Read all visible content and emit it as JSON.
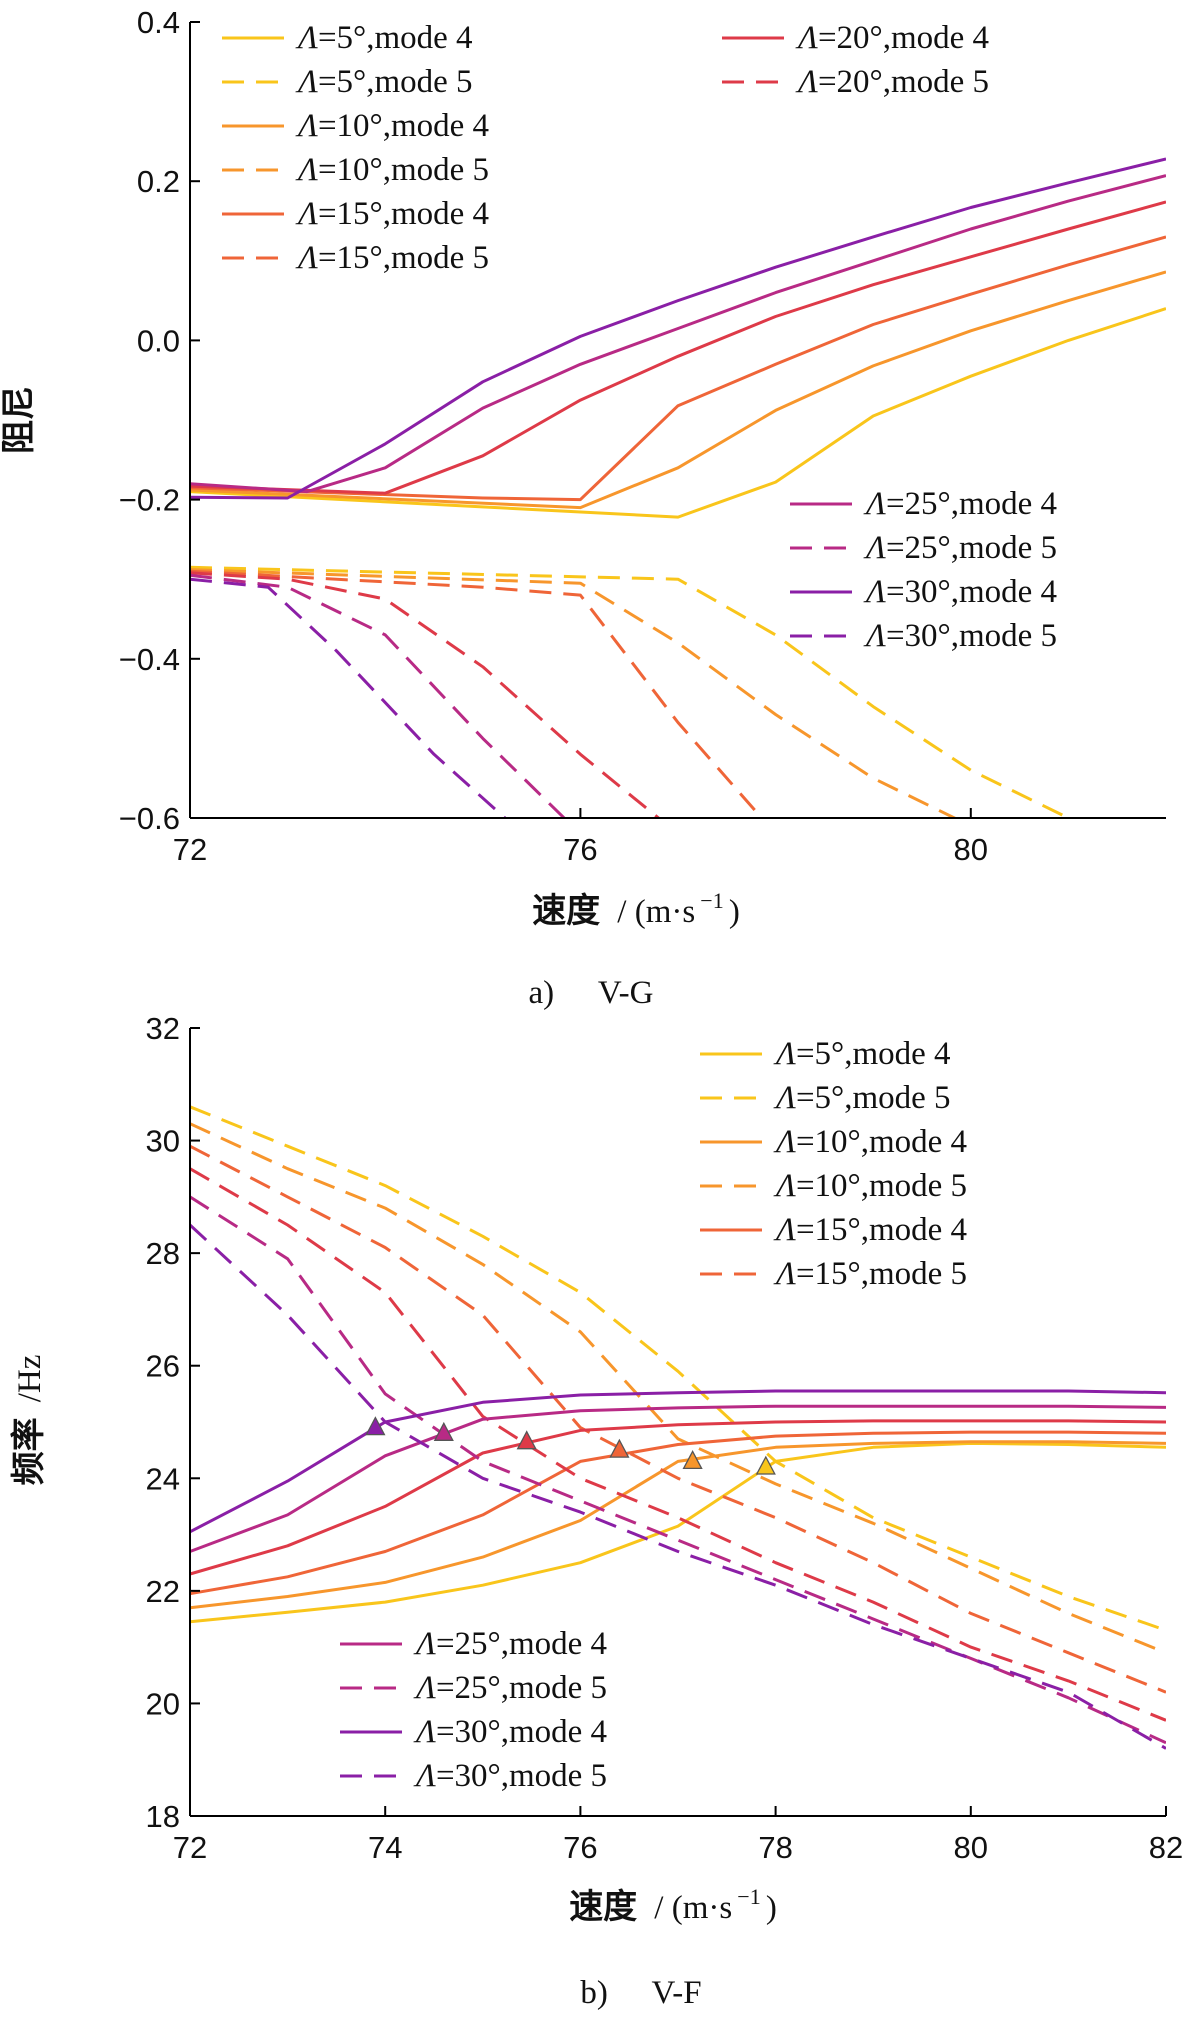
{
  "colors": {
    "sweep_5": "#f9c51b",
    "sweep_10": "#f7962c",
    "sweep_15": "#ef6538",
    "sweep_20": "#de3a48",
    "sweep_25": "#b82a85",
    "sweep_30": "#8a1fa6",
    "axis": "#000000"
  },
  "chart_data": [
    {
      "type": "line",
      "title": "",
      "caption": {
        "letter": "a)",
        "text": "V-G"
      },
      "xlabel": "速度",
      "xlabel_unit": "/ (m·s",
      "xlabel_sup": "−1",
      "xlabel_close": ")",
      "ylabel": "阻尼",
      "xlim": [
        72,
        82
      ],
      "ylim": [
        -0.6,
        0.4
      ],
      "xticks": [
        72,
        76,
        80
      ],
      "xtick_labels": [
        "72",
        "76",
        "80"
      ],
      "yticks": [
        0.4,
        0.2,
        0.0,
        -0.2,
        -0.4,
        -0.6
      ],
      "ytick_labels": [
        "0.4",
        "0.2",
        "0.0",
        "−0.2",
        "−0.4",
        "−0.6"
      ],
      "legends": [
        {
          "position": "top-left",
          "entries": [
            0,
            1,
            2,
            3,
            4,
            5
          ]
        },
        {
          "position": "top-center",
          "entries": [
            6,
            7
          ]
        },
        {
          "position": "middle-right",
          "entries": [
            8,
            9,
            10,
            11
          ]
        }
      ],
      "series": [
        {
          "name": "Λ=5°,mode 4",
          "lambda": "Λ",
          "rest": "=5°,mode 4",
          "sweep": 5,
          "dash": false,
          "color_key": "sweep_5",
          "x": [
            72,
            77,
            78,
            79,
            80,
            81,
            82
          ],
          "y": [
            -0.19,
            -0.222,
            -0.178,
            -0.095,
            -0.045,
            0.0,
            0.04
          ]
        },
        {
          "name": "Λ=5°,mode 5",
          "lambda": "Λ",
          "rest": "=5°,mode 5",
          "sweep": 5,
          "dash": true,
          "color_key": "sweep_5",
          "x": [
            72,
            77,
            78,
            79,
            80,
            81,
            82
          ],
          "y": [
            -0.285,
            -0.3,
            -0.37,
            -0.46,
            -0.54,
            -0.6,
            -0.63
          ]
        },
        {
          "name": "Λ=10°,mode 4",
          "lambda": "Λ",
          "rest": "=10°,mode 4",
          "sweep": 10,
          "dash": false,
          "color_key": "sweep_10",
          "x": [
            72,
            76,
            77,
            78,
            79,
            80,
            81,
            82
          ],
          "y": [
            -0.188,
            -0.21,
            -0.16,
            -0.088,
            -0.032,
            0.012,
            0.05,
            0.086
          ]
        },
        {
          "name": "Λ=10°,mode 5",
          "lambda": "Λ",
          "rest": "=10°,mode 5",
          "sweep": 10,
          "dash": true,
          "color_key": "sweep_10",
          "x": [
            72,
            76,
            77,
            78,
            79,
            80
          ],
          "y": [
            -0.288,
            -0.305,
            -0.38,
            -0.47,
            -0.55,
            -0.61
          ]
        },
        {
          "name": "Λ=15°,mode 4",
          "lambda": "Λ",
          "rest": "=15°,mode 4",
          "sweep": 15,
          "dash": false,
          "color_key": "sweep_15",
          "x": [
            72,
            75,
            76,
            77,
            78,
            79,
            80,
            81,
            82
          ],
          "y": [
            -0.185,
            -0.198,
            -0.2,
            -0.082,
            -0.03,
            0.02,
            0.058,
            0.095,
            0.13
          ]
        },
        {
          "name": "Λ=15°,mode 5",
          "lambda": "Λ",
          "rest": "=15°,mode 5",
          "sweep": 15,
          "dash": true,
          "color_key": "sweep_15",
          "x": [
            72,
            75,
            76,
            77,
            78
          ],
          "y": [
            -0.29,
            -0.31,
            -0.32,
            -0.48,
            -0.62
          ]
        },
        {
          "name": "Λ=20°,mode 4",
          "lambda": "Λ",
          "rest": "=20°,mode 4",
          "sweep": 20,
          "dash": false,
          "color_key": "sweep_20",
          "x": [
            72,
            74,
            75,
            76,
            77,
            78,
            79,
            80,
            81,
            82
          ],
          "y": [
            -0.183,
            -0.192,
            -0.145,
            -0.075,
            -0.02,
            0.03,
            0.07,
            0.105,
            0.14,
            0.174
          ]
        },
        {
          "name": "Λ=20°,mode 5",
          "lambda": "Λ",
          "rest": "=20°,mode 5",
          "sweep": 20,
          "dash": true,
          "color_key": "sweep_20",
          "x": [
            72,
            73,
            74,
            75,
            76,
            77
          ],
          "y": [
            -0.292,
            -0.3,
            -0.325,
            -0.41,
            -0.52,
            -0.62
          ]
        },
        {
          "name": "Λ=25°,mode 4",
          "lambda": "Λ",
          "rest": "=25°,mode 4",
          "sweep": 25,
          "dash": false,
          "color_key": "sweep_25",
          "x": [
            72,
            73.2,
            74,
            75,
            76,
            77,
            78,
            79,
            80,
            81,
            82
          ],
          "y": [
            -0.18,
            -0.19,
            -0.16,
            -0.085,
            -0.03,
            0.015,
            0.06,
            0.1,
            0.14,
            0.175,
            0.207
          ]
        },
        {
          "name": "Λ=25°,mode 5",
          "lambda": "Λ",
          "rest": "=25°,mode 5",
          "sweep": 25,
          "dash": true,
          "color_key": "sweep_25",
          "x": [
            72,
            73,
            74,
            75,
            76
          ],
          "y": [
            -0.295,
            -0.31,
            -0.37,
            -0.5,
            -0.62
          ]
        },
        {
          "name": "Λ=30°,mode 4",
          "lambda": "Λ",
          "rest": "=30°,mode 4",
          "sweep": 30,
          "dash": false,
          "color_key": "sweep_30",
          "x": [
            72,
            73,
            74,
            75,
            76,
            77,
            78,
            79,
            80,
            81,
            82
          ],
          "y": [
            -0.197,
            -0.198,
            -0.13,
            -0.052,
            0.005,
            0.05,
            0.092,
            0.13,
            0.167,
            0.198,
            0.228
          ]
        },
        {
          "name": "Λ=30°,mode 5",
          "lambda": "Λ",
          "rest": "=30°,mode 5",
          "sweep": 30,
          "dash": true,
          "color_key": "sweep_30",
          "x": [
            72,
            72.8,
            73.5,
            74.5,
            75.5
          ],
          "y": [
            -0.3,
            -0.31,
            -0.39,
            -0.52,
            -0.63
          ]
        }
      ]
    },
    {
      "type": "line",
      "title": "",
      "caption": {
        "letter": "b)",
        "text": "V-F"
      },
      "xlabel": "速度",
      "xlabel_unit": "/ (m·s",
      "xlabel_sup": "−1",
      "xlabel_close": ")",
      "ylabel": "频率",
      "ylabel_unit": "/Hz",
      "xlim": [
        72,
        82
      ],
      "ylim": [
        18,
        32
      ],
      "xticks": [
        72,
        74,
        76,
        78,
        80,
        82
      ],
      "xtick_labels": [
        "72",
        "74",
        "76",
        "78",
        "80",
        "82"
      ],
      "yticks": [
        32,
        30,
        28,
        26,
        24,
        22,
        20,
        18
      ],
      "ytick_labels": [
        "32",
        "30",
        "28",
        "26",
        "24",
        "22",
        "20",
        "18"
      ],
      "legends": [
        {
          "position": "top-right",
          "entries": [
            0,
            1,
            2,
            3,
            4,
            5
          ]
        },
        {
          "position": "bottom-left",
          "entries": [
            8,
            9,
            10,
            11
          ]
        }
      ],
      "markers": [
        {
          "sweep": 5,
          "x": 77.9,
          "y": 24.2,
          "color_key": "sweep_5"
        },
        {
          "sweep": 10,
          "x": 77.15,
          "y": 24.3,
          "color_key": "sweep_10"
        },
        {
          "sweep": 15,
          "x": 76.4,
          "y": 24.5,
          "color_key": "sweep_15"
        },
        {
          "sweep": 20,
          "x": 75.45,
          "y": 24.65,
          "color_key": "sweep_20"
        },
        {
          "sweep": 25,
          "x": 74.6,
          "y": 24.8,
          "color_key": "sweep_25"
        },
        {
          "sweep": 30,
          "x": 73.9,
          "y": 24.9,
          "color_key": "sweep_30"
        }
      ],
      "series": [
        {
          "name": "Λ=5°,mode 4",
          "lambda": "Λ",
          "rest": "=5°,mode 4",
          "sweep": 5,
          "dash": false,
          "color_key": "sweep_5",
          "x": [
            72,
            73,
            74,
            75,
            76,
            77,
            78,
            79,
            80,
            81,
            82
          ],
          "y": [
            21.45,
            21.62,
            21.8,
            22.1,
            22.5,
            23.15,
            24.3,
            24.55,
            24.62,
            24.6,
            24.55
          ]
        },
        {
          "name": "Λ=5°,mode 5",
          "lambda": "Λ",
          "rest": "=5°,mode 5",
          "sweep": 5,
          "dash": true,
          "color_key": "sweep_5",
          "x": [
            72,
            73,
            74,
            75,
            76,
            77,
            78,
            79,
            80,
            81,
            82
          ],
          "y": [
            30.6,
            29.9,
            29.2,
            28.3,
            27.3,
            25.9,
            24.3,
            23.3,
            22.6,
            21.9,
            21.3
          ]
        },
        {
          "name": "Λ=10°,mode 4",
          "lambda": "Λ",
          "rest": "=10°,mode 4",
          "sweep": 10,
          "dash": false,
          "color_key": "sweep_10",
          "x": [
            72,
            73,
            74,
            75,
            76,
            77,
            78,
            79,
            80,
            81,
            82
          ],
          "y": [
            21.7,
            21.9,
            22.15,
            22.6,
            23.25,
            24.3,
            24.55,
            24.62,
            24.65,
            24.65,
            24.62
          ]
        },
        {
          "name": "Λ=10°,mode 5",
          "lambda": "Λ",
          "rest": "=10°,mode 5",
          "sweep": 10,
          "dash": true,
          "color_key": "sweep_10",
          "x": [
            72,
            73,
            74,
            75,
            76,
            77,
            78,
            79,
            80,
            81,
            82
          ],
          "y": [
            30.3,
            29.5,
            28.8,
            27.8,
            26.6,
            24.7,
            23.9,
            23.2,
            22.4,
            21.6,
            20.9
          ]
        },
        {
          "name": "Λ=15°,mode 4",
          "lambda": "Λ",
          "rest": "=15°,mode 4",
          "sweep": 15,
          "dash": false,
          "color_key": "sweep_15",
          "x": [
            72,
            73,
            74,
            75,
            76,
            77,
            78,
            79,
            80,
            81,
            82
          ],
          "y": [
            21.95,
            22.25,
            22.7,
            23.35,
            24.3,
            24.6,
            24.75,
            24.8,
            24.82,
            24.82,
            24.8
          ]
        },
        {
          "name": "Λ=15°,mode 5",
          "lambda": "Λ",
          "rest": "=15°,mode 5",
          "sweep": 15,
          "dash": true,
          "color_key": "sweep_15",
          "x": [
            72,
            73,
            74,
            75,
            76,
            77,
            78,
            79,
            80,
            81,
            82
          ],
          "y": [
            29.9,
            29.0,
            28.1,
            26.9,
            24.9,
            24.0,
            23.3,
            22.5,
            21.6,
            20.9,
            20.2
          ]
        },
        {
          "name": "Λ=20°,mode 4",
          "lambda": "Λ",
          "rest": "=20°,mode 4",
          "sweep": 20,
          "dash": false,
          "color_key": "sweep_20",
          "x": [
            72,
            73,
            74,
            75,
            76,
            77,
            78,
            79,
            80,
            81,
            82
          ],
          "y": [
            22.3,
            22.8,
            23.5,
            24.45,
            24.85,
            24.95,
            25.0,
            25.02,
            25.02,
            25.02,
            25.0
          ]
        },
        {
          "name": "Λ=20°,mode 5",
          "lambda": "Λ",
          "rest": "=20°,mode 5",
          "sweep": 20,
          "dash": true,
          "color_key": "sweep_20",
          "x": [
            72,
            73,
            74,
            75,
            76,
            77,
            78,
            79,
            80,
            81,
            82
          ],
          "y": [
            29.5,
            28.5,
            27.3,
            25.1,
            24.0,
            23.3,
            22.5,
            21.8,
            21.0,
            20.4,
            19.7
          ]
        },
        {
          "name": "Λ=25°,mode 4",
          "lambda": "Λ",
          "rest": "=25°,mode 4",
          "sweep": 25,
          "dash": false,
          "color_key": "sweep_25",
          "x": [
            72,
            73,
            74,
            75,
            76,
            77,
            78,
            79,
            80,
            81,
            82
          ],
          "y": [
            22.7,
            23.35,
            24.4,
            25.05,
            25.2,
            25.25,
            25.28,
            25.28,
            25.28,
            25.28,
            25.26
          ]
        },
        {
          "name": "Λ=25°,mode 5",
          "lambda": "Λ",
          "rest": "=25°,mode 5",
          "sweep": 25,
          "dash": true,
          "color_key": "sweep_25",
          "x": [
            72,
            73,
            74,
            75,
            76,
            77,
            78,
            79,
            80,
            81,
            82
          ],
          "y": [
            29.0,
            27.9,
            25.5,
            24.3,
            23.6,
            22.9,
            22.2,
            21.5,
            20.8,
            20.1,
            19.3
          ]
        },
        {
          "name": "Λ=30°,mode 4",
          "lambda": "Λ",
          "rest": "=30°,mode 4",
          "sweep": 30,
          "dash": false,
          "color_key": "sweep_30",
          "x": [
            72,
            73,
            74,
            75,
            76,
            77,
            78,
            79,
            80,
            81,
            82
          ],
          "y": [
            23.05,
            23.95,
            25.0,
            25.35,
            25.48,
            25.52,
            25.55,
            25.55,
            25.55,
            25.55,
            25.52
          ]
        },
        {
          "name": "Λ=30°,mode 5",
          "lambda": "Λ",
          "rest": "=30°,mode 5",
          "sweep": 30,
          "dash": true,
          "color_key": "sweep_30",
          "x": [
            72,
            73,
            74,
            75,
            76,
            77,
            78,
            79,
            80,
            81,
            82
          ],
          "y": [
            28.5,
            26.9,
            25.0,
            24.0,
            23.4,
            22.7,
            22.1,
            21.4,
            20.8,
            20.2,
            19.2
          ]
        }
      ]
    }
  ]
}
